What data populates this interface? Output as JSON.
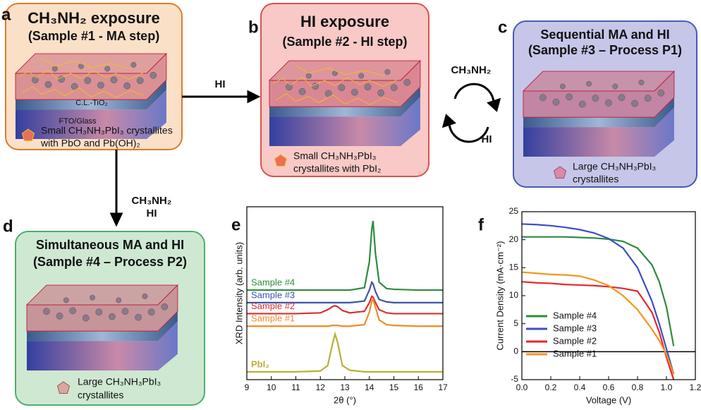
{
  "panels": [
    {
      "letter": "a",
      "title": "CH₃NH₂ exposure",
      "subtitle": "(Sample #1 - MA step)",
      "layers": [
        "C.L.-TiO₂",
        "FTO/Glass"
      ],
      "caption": [
        "Small CH₃NH₃PbI₃ crystallites",
        "with PbO and Pb(OH)₂"
      ]
    },
    {
      "letter": "b",
      "title": "HI exposure",
      "subtitle": "(Sample #2 - HI step)",
      "caption": [
        "Small CH₃NH₃PbI₃",
        "crystallites with PbI₂"
      ]
    },
    {
      "letter": "c",
      "title": "Sequential MA and HI",
      "subtitle": "(Sample #3 – Process P1)",
      "caption": [
        "Large CH₃NH₃PbI₃",
        "crystallites"
      ]
    },
    {
      "letter": "d",
      "title": "Simultaneous MA and HI",
      "subtitle": "(Sample #4 – Process P2)",
      "caption": [
        "Large CH₃NH₃PbI₃",
        "crystallites"
      ]
    }
  ],
  "arrows": {
    "a_to_b": "HI",
    "cycle_top": "CH₃NH₂",
    "cycle_bottom": "HI",
    "a_to_d": [
      "CH₃NH₂",
      "HI"
    ]
  },
  "chart_data": [
    {
      "type": "line",
      "label": "e",
      "xlabel": "2θ (°)",
      "ylabel": "XRD Intensity (arb. units)",
      "x": [
        9,
        10,
        11,
        12,
        12.3,
        12.5,
        12.6,
        12.7,
        12.9,
        13.2,
        13.8,
        14.0,
        14.1,
        14.15,
        14.25,
        14.4,
        14.7,
        15,
        16,
        17
      ],
      "series": [
        {
          "name": "Sample #4",
          "color": "#2e8b3e",
          "values": [
            5.7,
            5.7,
            5.7,
            5.7,
            5.7,
            5.7,
            5.7,
            5.7,
            5.7,
            5.7,
            5.85,
            7.5,
            9.6,
            10.1,
            8.0,
            6.2,
            5.8,
            5.75,
            5.7,
            5.7
          ]
        },
        {
          "name": "Sample #3",
          "color": "#3a55a8",
          "values": [
            4.9,
            4.9,
            4.9,
            4.9,
            4.9,
            4.9,
            4.9,
            4.9,
            4.9,
            4.9,
            5.0,
            5.7,
            6.2,
            6.1,
            5.6,
            5.1,
            4.95,
            4.9,
            4.9,
            4.9
          ]
        },
        {
          "name": "Sample #2",
          "color": "#d73030",
          "values": [
            4.2,
            4.2,
            4.2,
            4.25,
            4.45,
            4.65,
            4.7,
            4.65,
            4.4,
            4.25,
            4.35,
            4.9,
            5.3,
            5.25,
            4.9,
            4.45,
            4.25,
            4.2,
            4.2,
            4.2
          ]
        },
        {
          "name": "Sample #1",
          "color": "#f08a2a",
          "values": [
            3.4,
            3.4,
            3.4,
            3.4,
            3.4,
            3.45,
            3.45,
            3.45,
            3.4,
            3.4,
            3.5,
            4.3,
            5.0,
            5.1,
            4.6,
            3.8,
            3.5,
            3.45,
            3.4,
            3.4
          ]
        },
        {
          "name": "PbI₂",
          "color": "#b8b03a",
          "values": [
            0.5,
            0.5,
            0.5,
            0.55,
            0.9,
            2.3,
            2.9,
            2.4,
            0.9,
            0.6,
            0.5,
            0.5,
            0.5,
            0.5,
            0.5,
            0.5,
            0.5,
            0.5,
            0.5,
            0.5
          ]
        }
      ],
      "xlim": [
        9,
        17
      ],
      "xticks": [
        9,
        10,
        11,
        12,
        13,
        14,
        15,
        16,
        17
      ],
      "ylim": [
        0,
        11
      ]
    },
    {
      "type": "line",
      "label": "f",
      "xlabel": "Voltage (V)",
      "ylabel": "Current Density (mA·cm⁻²)",
      "x": [
        0,
        0.1,
        0.2,
        0.3,
        0.4,
        0.5,
        0.6,
        0.7,
        0.8,
        0.9,
        0.95,
        1.0,
        1.05
      ],
      "series": [
        {
          "name": "Sample #4",
          "color": "#2e8b3e",
          "values": [
            20.5,
            20.5,
            20.5,
            20.5,
            20.4,
            20.3,
            20.1,
            19.7,
            18.5,
            15.5,
            12.5,
            8,
            1
          ]
        },
        {
          "name": "Sample #3",
          "color": "#3b4fc4",
          "values": [
            22.8,
            22.7,
            22.5,
            22.2,
            21.8,
            21.2,
            20.2,
            18.5,
            15,
            9,
            5,
            0.5,
            -4
          ]
        },
        {
          "name": "Sample #2",
          "color": "#e8262a",
          "values": [
            12.5,
            12.3,
            12.2,
            12.0,
            11.9,
            11.8,
            11.6,
            11.3,
            10.8,
            7,
            3.5,
            -1,
            -5
          ]
        },
        {
          "name": "Sample #1",
          "color": "#f7941d",
          "values": [
            14.2,
            14,
            13.8,
            13.7,
            13.5,
            12.8,
            11.8,
            10,
            7.5,
            4,
            2,
            -0.5,
            -4
          ]
        }
      ],
      "xlim": [
        0,
        1.2
      ],
      "xticks": [
        {
          "value": 0,
          "label": "0.0"
        },
        0.2,
        0.4,
        0.6,
        0.8,
        {
          "value": 1,
          "label": "1.0"
        },
        1.2
      ],
      "ylim": [
        -5,
        25
      ],
      "yticks": [
        -5,
        0,
        5,
        10,
        15,
        20,
        25
      ],
      "legend": "lower left"
    }
  ]
}
